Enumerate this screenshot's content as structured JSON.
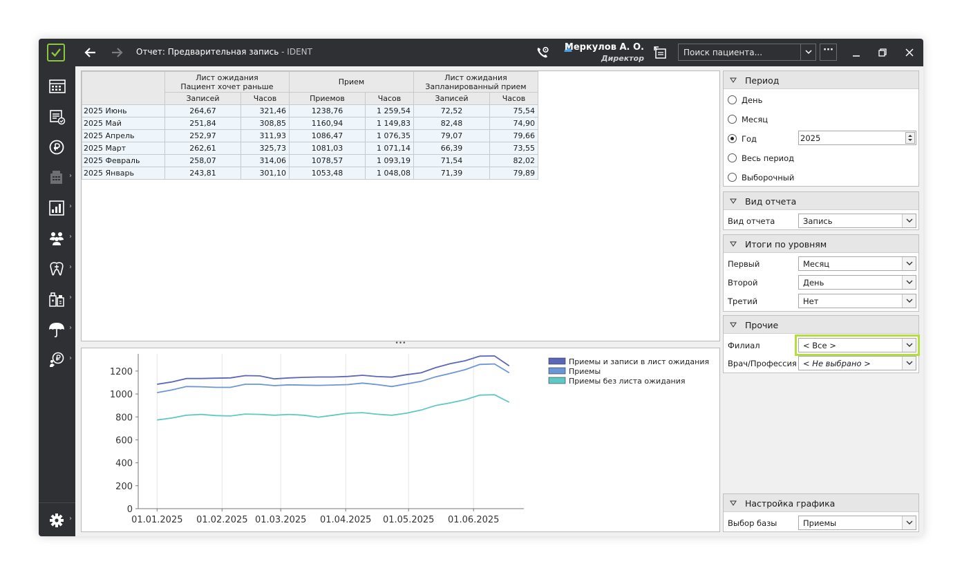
{
  "titlebar": {
    "title": "Отчет: Предварительная запись",
    "app_name": " - IDENT",
    "user_name": "Меркулов А. О.",
    "user_role": "Директор",
    "search_placeholder": "Поиск пациента...",
    "more_label": "···"
  },
  "sidebar": {
    "items": [
      {
        "icon": "calendar-grid-icon"
      },
      {
        "icon": "schedule-check-icon"
      },
      {
        "icon": "ruble-icon"
      },
      {
        "icon": "register-icon"
      },
      {
        "icon": "reports-chart-icon"
      },
      {
        "icon": "patients-icon"
      },
      {
        "icon": "tooth-icon"
      },
      {
        "icon": "pharmacy-icon"
      },
      {
        "icon": "umbrella-icon"
      },
      {
        "icon": "ruble-person-icon"
      }
    ],
    "settings_icon": "gear-icon"
  },
  "table": {
    "groups": [
      {
        "line1": "Лист ожидания",
        "line2": "Пациент хочет раньше"
      },
      {
        "line1": "Прием",
        "line2": ""
      },
      {
        "line1": "Лист ожидания",
        "line2": "Запланированный прием"
      }
    ],
    "subheaders": [
      "Записей",
      "Часов",
      "Приемов",
      "Часов",
      "Записей",
      "Часов"
    ],
    "rows": [
      {
        "label": "2025 Июнь",
        "cells": [
          "264,67",
          "321,46",
          "1238,76",
          "1 259,54",
          "72,52",
          "75,54"
        ]
      },
      {
        "label": "2025 Май",
        "cells": [
          "251,84",
          "308,85",
          "1160,94",
          "1 149,83",
          "82,48",
          "74,90"
        ]
      },
      {
        "label": "2025 Апрель",
        "cells": [
          "252,97",
          "311,93",
          "1086,47",
          "1 076,35",
          "79,07",
          "79,66"
        ]
      },
      {
        "label": "2025 Март",
        "cells": [
          "262,61",
          "325,73",
          "1081,03",
          "1 071,14",
          "66,39",
          "73,55"
        ]
      },
      {
        "label": "2025 Февраль",
        "cells": [
          "258,07",
          "314,06",
          "1078,57",
          "1 093,19",
          "71,54",
          "82,02"
        ]
      },
      {
        "label": "2025 Январь",
        "cells": [
          "243,81",
          "301,10",
          "1053,48",
          "1 048,08",
          "71,39",
          "79,89"
        ]
      }
    ]
  },
  "splitter_label": "•••",
  "chart_data": {
    "type": "line",
    "title": "",
    "xlabel": "",
    "ylabel": "",
    "ylim": [
      0,
      1350
    ],
    "yticks": [
      0,
      200,
      400,
      600,
      800,
      1000,
      1200
    ],
    "x_tick_labels": [
      "01.01.2025",
      "01.02.2025",
      "01.03.2025",
      "01.04.2025",
      "01.05.2025",
      "01.06.2025"
    ],
    "x_tick_dates": [
      "2025-01-01",
      "2025-02-01",
      "2025-03-01",
      "2025-04-01",
      "2025-05-01",
      "2025-06-01"
    ],
    "x": [
      "2025-01-01",
      "2025-01-08",
      "2025-01-15",
      "2025-01-22",
      "2025-01-29",
      "2025-02-05",
      "2025-02-12",
      "2025-02-19",
      "2025-02-26",
      "2025-03-05",
      "2025-03-12",
      "2025-03-19",
      "2025-03-26",
      "2025-04-02",
      "2025-04-09",
      "2025-04-16",
      "2025-04-23",
      "2025-04-30",
      "2025-05-07",
      "2025-05-14",
      "2025-05-21",
      "2025-05-28",
      "2025-06-04",
      "2025-06-11",
      "2025-06-18"
    ],
    "series": [
      {
        "name": "Приемы и записи в лист ожидания",
        "color": "#5b66b8",
        "values": [
          1085,
          1105,
          1135,
          1135,
          1138,
          1140,
          1160,
          1158,
          1132,
          1140,
          1145,
          1148,
          1148,
          1153,
          1163,
          1152,
          1147,
          1168,
          1185,
          1230,
          1265,
          1290,
          1330,
          1332,
          1245
        ]
      },
      {
        "name": "Приемы",
        "color": "#6b96d6",
        "values": [
          1012,
          1035,
          1065,
          1063,
          1058,
          1058,
          1085,
          1085,
          1073,
          1080,
          1077,
          1075,
          1078,
          1082,
          1095,
          1082,
          1065,
          1088,
          1110,
          1150,
          1180,
          1212,
          1258,
          1262,
          1185
        ]
      },
      {
        "name": "Приемы без листа ожидания",
        "color": "#5ec8c4",
        "values": [
          773,
          790,
          815,
          822,
          812,
          808,
          825,
          822,
          815,
          822,
          815,
          798,
          815,
          832,
          837,
          823,
          815,
          832,
          860,
          900,
          923,
          950,
          990,
          993,
          928
        ]
      }
    ]
  },
  "right_panel": {
    "period": {
      "title": "Период",
      "options": [
        "День",
        "Месяц",
        "Год",
        "Весь период",
        "Выборочный"
      ],
      "selected": "Год",
      "year_value": "2025"
    },
    "report_type": {
      "title": "Вид отчета",
      "label": "Вид отчета",
      "value": "Запись"
    },
    "levels": {
      "title": "Итоги по уровням",
      "first_label": "Первый",
      "first_value": "Месяц",
      "second_label": "Второй",
      "second_value": "День",
      "third_label": "Третий",
      "third_value": "Нет"
    },
    "other": {
      "title": "Прочие",
      "branch_label": "Филиал",
      "branch_value": "< Все >",
      "doctor_label": "Врач/Профессия",
      "doctor_value": "< Не выбрано >"
    },
    "chart_settings": {
      "title": "Настройка графика",
      "base_label": "Выбор базы",
      "base_value": "Приемы"
    }
  }
}
